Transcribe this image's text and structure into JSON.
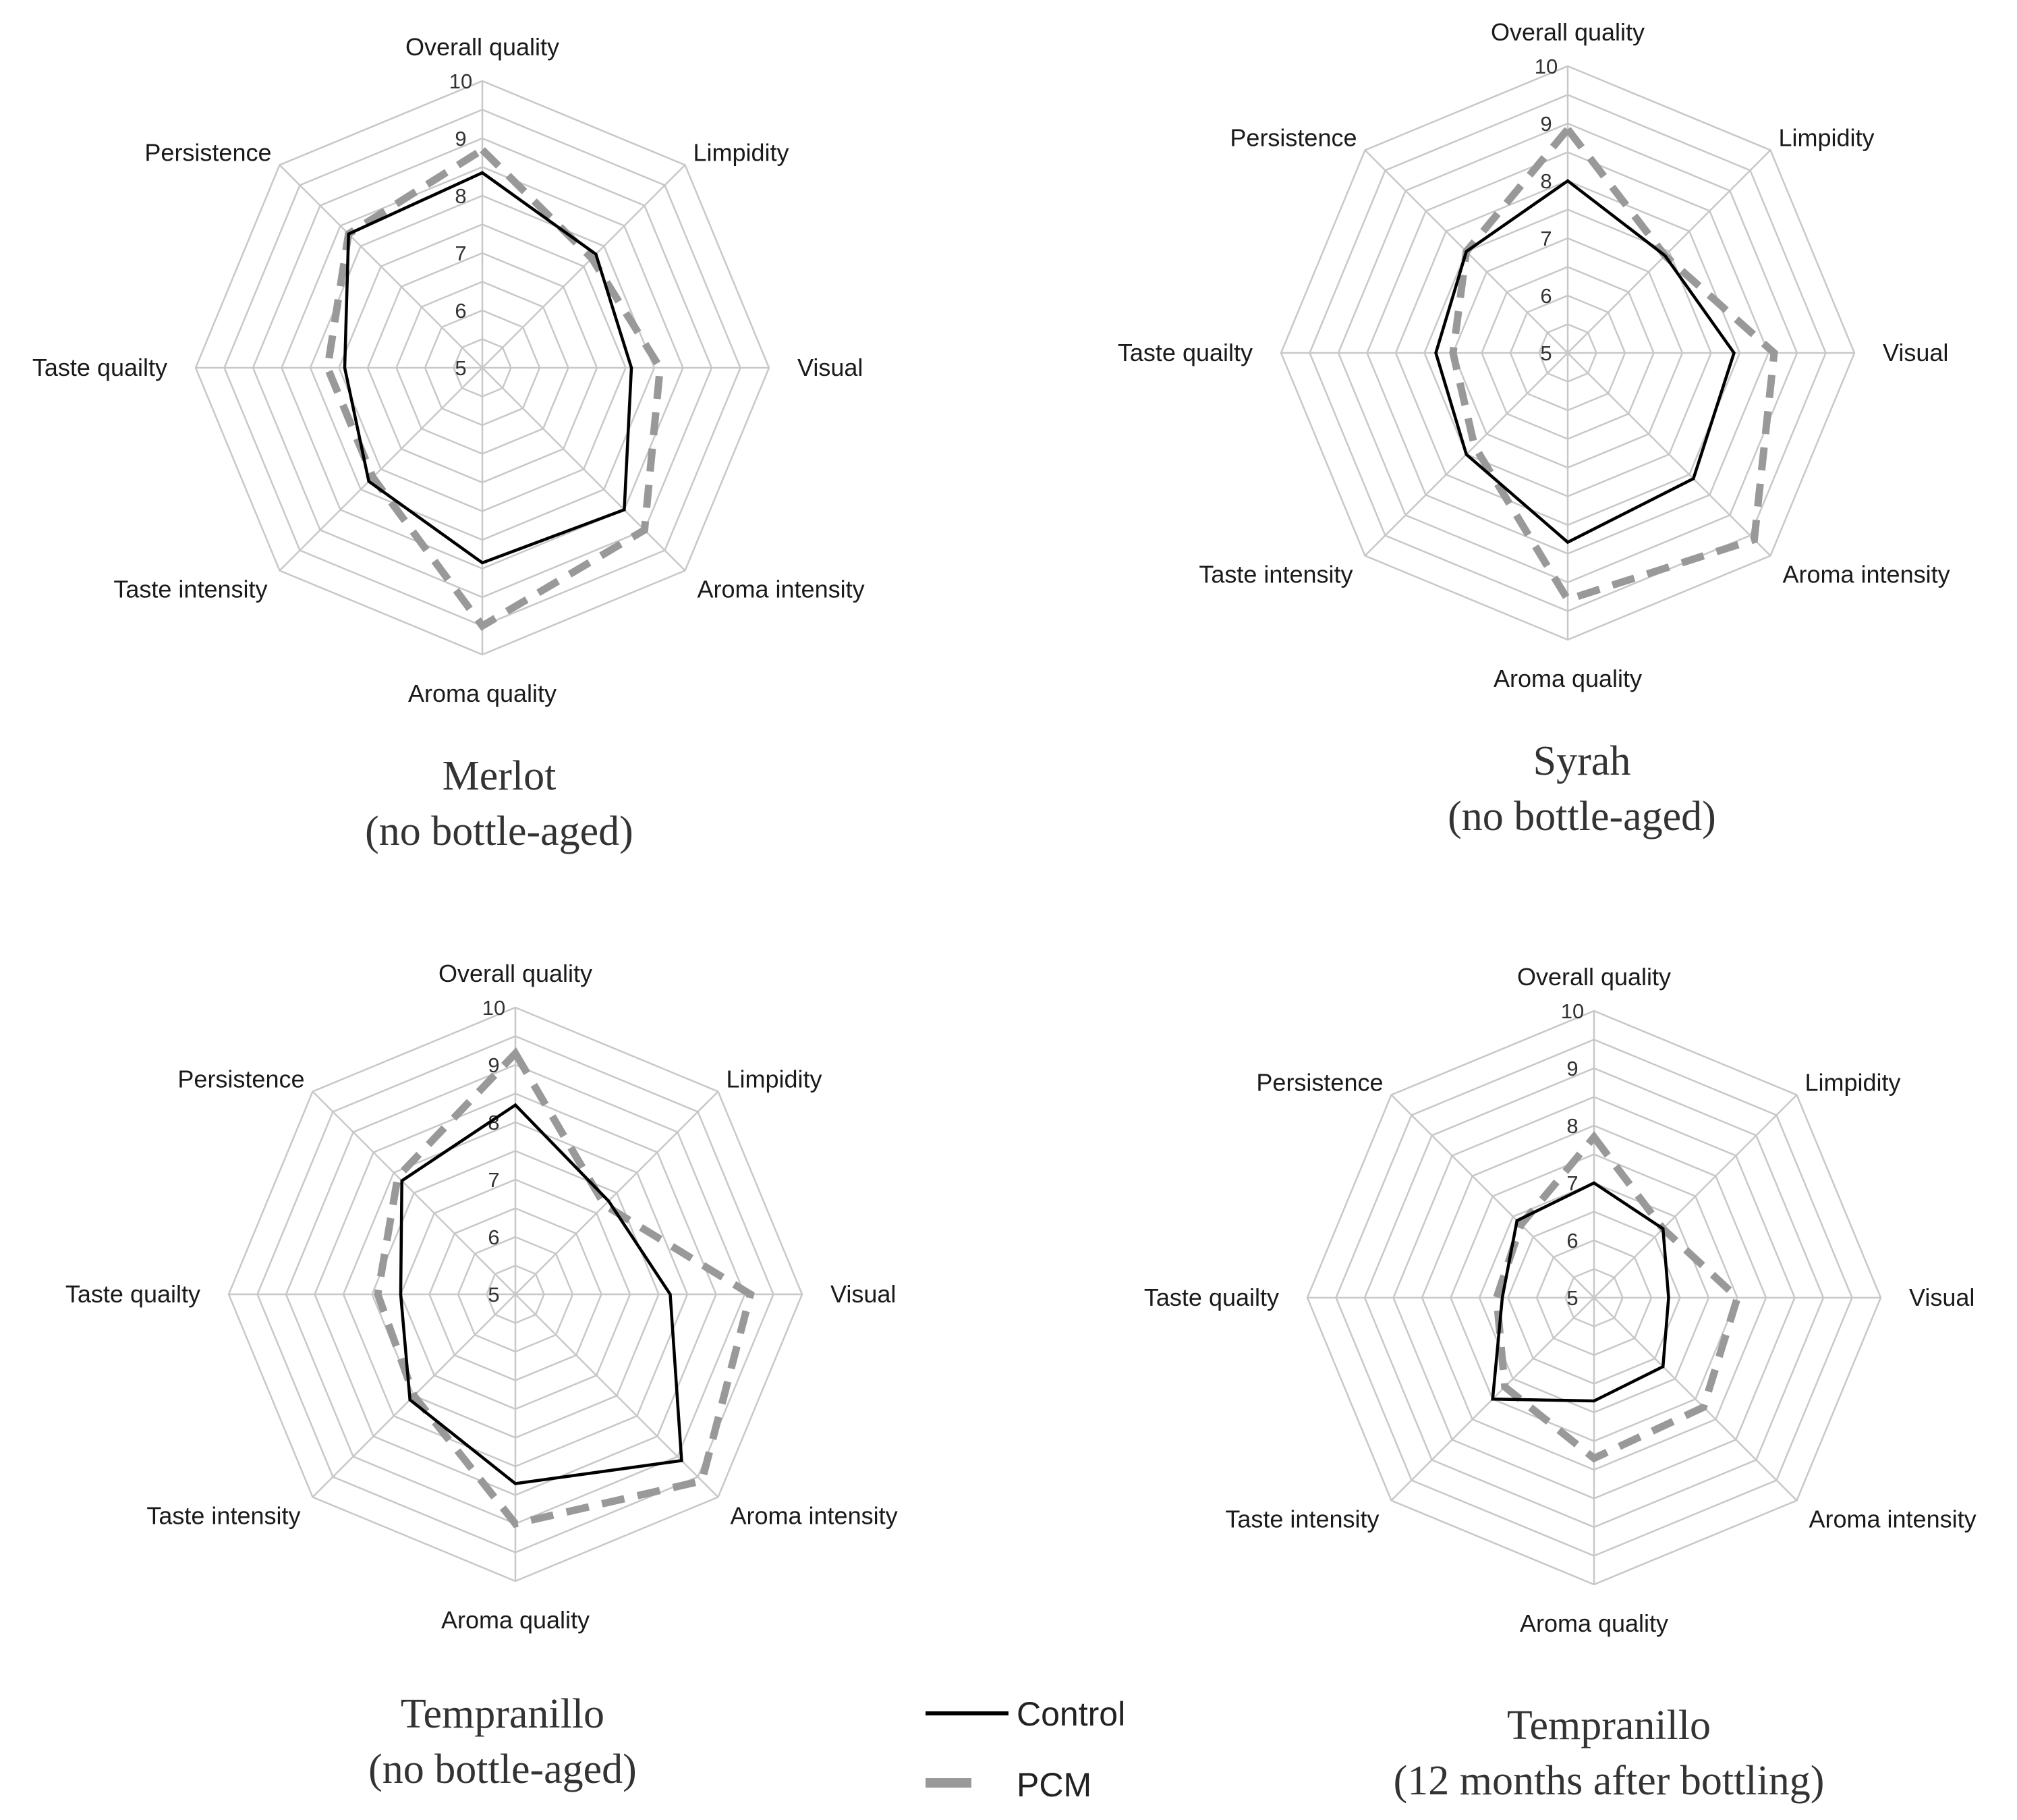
{
  "legend": [
    {
      "name": "Control",
      "color": "#000000",
      "style": "solid"
    },
    {
      "name": "PCM",
      "color": "#999999",
      "style": "dashed"
    }
  ],
  "chart_data": [
    {
      "type": "radar",
      "title": "Merlot",
      "subtitle": "(no bottle-aged)",
      "axes": [
        "Overall quality",
        "Limpidity",
        "Visual",
        "Aroma intensity",
        "Aroma quality",
        "Taste intensity",
        "Taste quailty",
        "Persistence"
      ],
      "range": [
        5,
        10
      ],
      "ticks": [
        "5",
        "6",
        "7",
        "8",
        "9",
        "10"
      ],
      "series": [
        {
          "name": "Control",
          "values": [
            8.4,
            7.8,
            7.6,
            8.5,
            8.4,
            7.8,
            7.4,
            8.3
          ]
        },
        {
          "name": "PCM",
          "values": [
            8.8,
            7.7,
            8.1,
            9.0,
            9.5,
            7.7,
            7.7,
            8.3
          ]
        }
      ]
    },
    {
      "type": "radar",
      "title": "Syrah",
      "subtitle": "(no bottle-aged)",
      "axes": [
        "Overall quality",
        "Limpidity",
        "Visual",
        "Aroma intensity",
        "Aroma quality",
        "Taste intensity",
        "Taste quailty",
        "Persistence"
      ],
      "range": [
        5,
        10
      ],
      "ticks": [
        "5",
        "6",
        "7",
        "8",
        "9",
        "10"
      ],
      "series": [
        {
          "name": "Control",
          "values": [
            8.0,
            7.4,
            7.9,
            8.1,
            8.3,
            7.5,
            7.3,
            7.5
          ]
        },
        {
          "name": "PCM",
          "values": [
            8.9,
            7.4,
            8.6,
            9.6,
            9.3,
            7.3,
            7.0,
            7.5
          ]
        }
      ]
    },
    {
      "type": "radar",
      "title": "Tempranillo",
      "subtitle": "(no bottle-aged)",
      "axes": [
        "Overall quality",
        "Limpidity",
        "Visual",
        "Aroma intensity",
        "Aroma quality",
        "Taste intensity",
        "Taste quailty",
        "Persistence"
      ],
      "range": [
        5,
        10
      ],
      "ticks": [
        "5",
        "6",
        "7",
        "8",
        "9",
        "10"
      ],
      "series": [
        {
          "name": "Control",
          "values": [
            8.3,
            7.3,
            7.7,
            9.1,
            8.3,
            7.6,
            7.0,
            7.8
          ]
        },
        {
          "name": "PCM",
          "values": [
            9.2,
            7.2,
            9.1,
            9.6,
            9.0,
            7.5,
            7.4,
            7.9
          ]
        }
      ]
    },
    {
      "type": "radar",
      "title": "Tempranillo",
      "subtitle": "(12 months after bottling)",
      "axes": [
        "Overall quality",
        "Limpidity",
        "Visual",
        "Aroma intensity",
        "Aroma quality",
        "Taste intensity",
        "Taste quailty",
        "Persistence"
      ],
      "range": [
        5,
        10
      ],
      "ticks": [
        "5",
        "6",
        "7",
        "8",
        "9",
        "10"
      ],
      "series": [
        {
          "name": "Control",
          "values": [
            7.0,
            6.7,
            6.3,
            6.7,
            6.8,
            7.5,
            6.6,
            6.9
          ]
        },
        {
          "name": "PCM",
          "values": [
            7.8,
            6.7,
            7.5,
            7.7,
            7.8,
            7.2,
            6.7,
            6.8
          ]
        }
      ]
    }
  ]
}
